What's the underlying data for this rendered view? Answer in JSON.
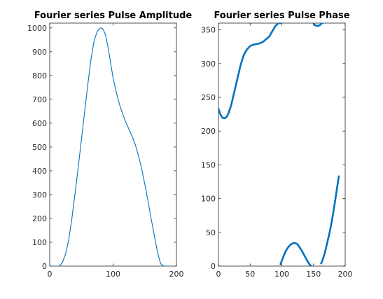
{
  "chart_data": [
    {
      "type": "line",
      "title": "Fourier series Pulse Amplitude",
      "xlabel": "",
      "ylabel": "",
      "xlim": [
        0,
        200
      ],
      "ylim": [
        0,
        1020
      ],
      "xticks": [
        0,
        100,
        200
      ],
      "yticks": [
        0,
        100,
        200,
        300,
        400,
        500,
        600,
        700,
        800,
        900,
        1000
      ],
      "grid": false,
      "line_color": "#0072BD",
      "line_style": "thin",
      "series": [
        {
          "x": [
            0,
            10,
            15,
            20,
            25,
            30,
            35,
            40,
            45,
            50,
            55,
            60,
            65,
            70,
            75,
            80,
            83,
            85,
            88,
            92,
            96,
            100,
            105,
            110,
            115,
            120,
            125,
            130,
            135,
            140,
            145,
            150,
            155,
            160,
            165,
            170,
            175,
            180,
            185,
            190,
            195
          ],
          "values": [
            0,
            0,
            0,
            15,
            50,
            110,
            200,
            305,
            415,
            530,
            645,
            760,
            865,
            945,
            985,
            1000,
            998,
            990,
            970,
            920,
            855,
            790,
            730,
            680,
            640,
            605,
            575,
            545,
            510,
            465,
            410,
            345,
            275,
            200,
            130,
            60,
            10,
            0,
            0,
            0,
            0
          ]
        }
      ]
    },
    {
      "type": "line",
      "title": "Fourier series Pulse Phase",
      "xlabel": "",
      "ylabel": "",
      "xlim": [
        0,
        200
      ],
      "ylim": [
        0,
        360
      ],
      "xticks": [
        0,
        50,
        100,
        150,
        200
      ],
      "yticks": [
        0,
        50,
        100,
        150,
        200,
        250,
        300,
        350
      ],
      "grid": false,
      "line_color": "#0072BD",
      "line_style": "thick",
      "series": [
        {
          "x": [
            0,
            3,
            6,
            10,
            13,
            16,
            20,
            25,
            30,
            35,
            40,
            45,
            50,
            55,
            60,
            65,
            70,
            75,
            80,
            85,
            90,
            95,
            98
          ],
          "values": [
            233,
            225,
            220,
            219,
            221,
            227,
            238,
            258,
            278,
            298,
            313,
            321,
            326,
            328,
            329,
            330,
            332,
            336,
            340,
            348,
            356,
            360,
            360
          ]
        },
        {
          "x": [
            150,
            152,
            155,
            158,
            160,
            162,
            164
          ],
          "values": [
            360,
            357,
            356,
            356,
            357,
            359,
            360
          ]
        },
        {
          "x": [
            98,
            100,
            103,
            106,
            110,
            114,
            118,
            121,
            124,
            128,
            132,
            136,
            140,
            144,
            147
          ],
          "values": [
            3,
            8,
            15,
            22,
            28,
            32,
            34,
            34,
            33,
            28,
            22,
            15,
            8,
            2,
            0
          ]
        },
        {
          "x": [
            162,
            164,
            166,
            168,
            170,
            172,
            175,
            178,
            181,
            184,
            187,
            190
          ],
          "values": [
            4,
            8,
            14,
            20,
            28,
            36,
            48,
            62,
            78,
            96,
            115,
            133
          ]
        }
      ]
    }
  ]
}
